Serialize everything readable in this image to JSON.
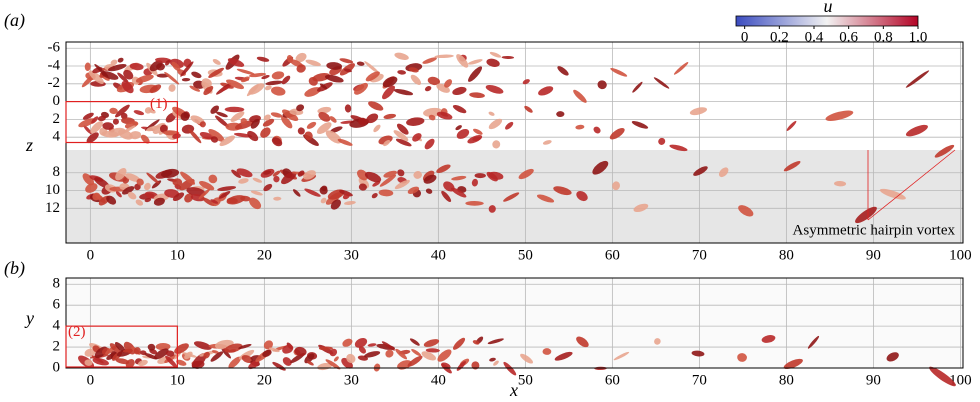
{
  "chart_data": [
    {
      "type": "isosurface",
      "panel_label": "(a)",
      "ylabel": "z",
      "xlim": [
        -2.8,
        100.3
      ],
      "ylim": [
        15.9,
        -6.7
      ],
      "xticks": [
        0,
        10,
        20,
        30,
        40,
        50,
        60,
        70,
        80,
        90,
        100
      ],
      "yticks": [
        -6,
        -4,
        -2,
        0,
        2,
        4,
        8,
        10,
        12
      ],
      "grid": true,
      "colorbar": {
        "label": "u",
        "clim": [
          -0.05,
          1
        ],
        "ticks": [
          0,
          0.2,
          0.4,
          0.6,
          0.8,
          {
            "value": 1,
            "label": "1.0"
          }
        ],
        "colors": [
          "#3b4cc0",
          "#f2f2f2",
          "#b40426"
        ]
      },
      "annotations": [
        "(1)",
        "Asymmetric hairpin vortex"
      ]
    },
    {
      "type": "isosurface",
      "panel_label": "(b)",
      "xlabel": "x",
      "ylabel": "y",
      "xlim": [
        -2.8,
        100.3
      ],
      "ylim": [
        0,
        8.6
      ],
      "xticks": [
        0,
        10,
        20,
        30,
        40,
        50,
        60,
        70,
        80,
        90,
        100
      ],
      "yticks": [
        0,
        2,
        4,
        6,
        8
      ],
      "grid": true,
      "annotations": [
        "(2)"
      ]
    }
  ]
}
